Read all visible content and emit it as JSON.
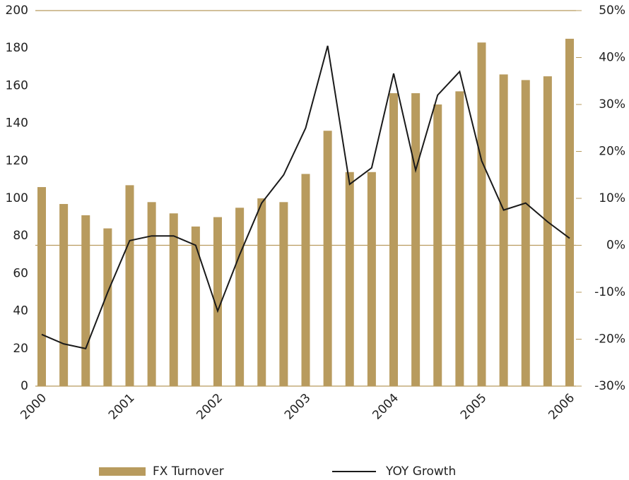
{
  "chart_data": {
    "type": "bar_line",
    "categories": [
      "2000",
      null,
      null,
      null,
      "2001",
      null,
      null,
      null,
      "2002",
      null,
      null,
      null,
      "2003",
      null,
      null,
      null,
      "2004",
      null,
      null,
      null,
      "2005",
      null,
      null,
      null,
      "2006"
    ],
    "series": [
      {
        "name": "FX Turnover",
        "type": "bar",
        "color": "#b89b5e",
        "axis": "y",
        "values": [
          106,
          97,
          91,
          84,
          107,
          98,
          92,
          85,
          90,
          95,
          100,
          98,
          113,
          136,
          114,
          114,
          156,
          156,
          150,
          157,
          183,
          166,
          163,
          165,
          185
        ]
      },
      {
        "name": "YOY Growth",
        "type": "line",
        "color": "#1a1a1a",
        "axis": "y2",
        "values": [
          -19,
          -21,
          -22,
          -10,
          1,
          2,
          2,
          0,
          -14,
          -2,
          9,
          15,
          25,
          42.5,
          13,
          16.5,
          36.6,
          16,
          32,
          37,
          18,
          7.5,
          9,
          5,
          1.5
        ]
      }
    ],
    "ylim": [
      0,
      200
    ],
    "yticks": [
      0,
      20,
      40,
      60,
      80,
      100,
      120,
      140,
      160,
      180,
      200
    ],
    "y2lim": [
      -30,
      50
    ],
    "y2ticks": [
      {
        "value": -30,
        "label": "-30%"
      },
      {
        "value": -20,
        "label": "-20%"
      },
      {
        "value": -10,
        "label": "-10%"
      },
      {
        "value": 0,
        "label": "0%"
      },
      {
        "value": 10,
        "label": "10%"
      },
      {
        "value": 20,
        "label": "20%"
      },
      {
        "value": 30,
        "label": "30%"
      },
      {
        "value": 40,
        "label": "40%"
      },
      {
        "value": 50,
        "label": "50%"
      }
    ],
    "axis_color": "#b89b5e"
  }
}
